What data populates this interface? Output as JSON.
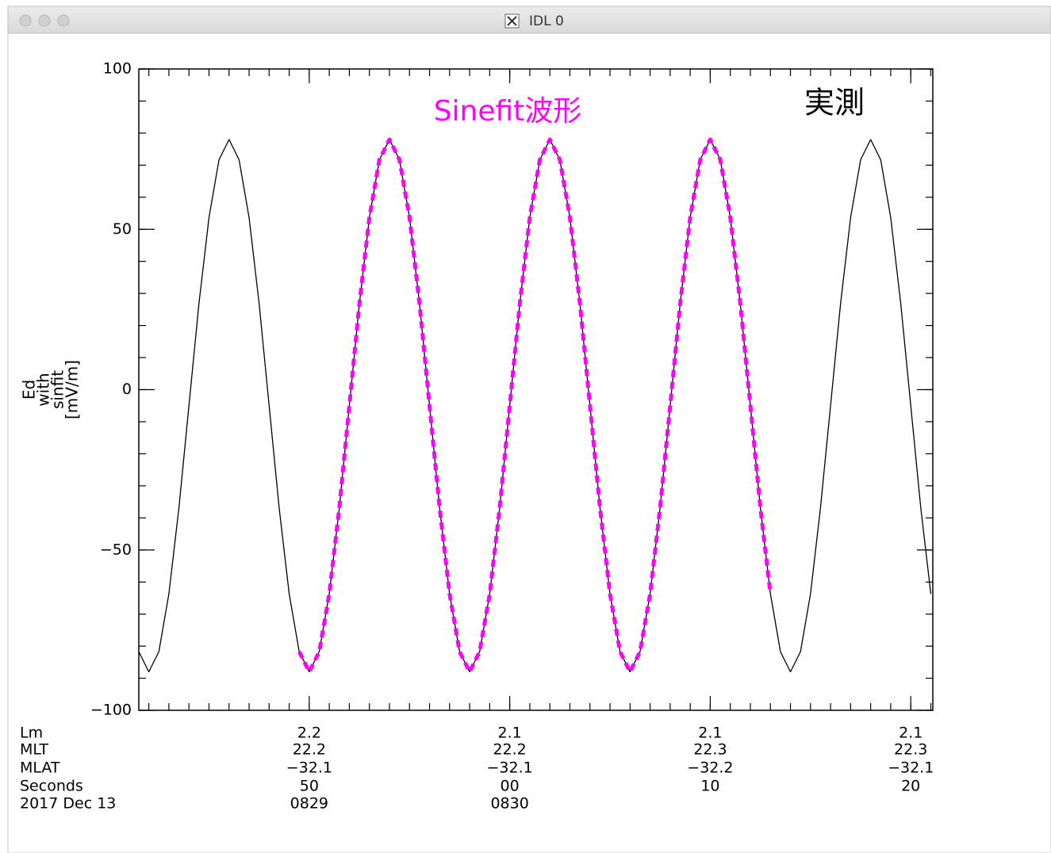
{
  "window": {
    "title": "IDL 0"
  },
  "chart_data": {
    "type": "line",
    "ylabel": [
      "Ed",
      "with",
      "sinfit",
      "[mV/m]"
    ],
    "annotations": [
      {
        "text": "Sinefit波形",
        "color": "#ff00ff"
      },
      {
        "text": "実測",
        "color": "#000000"
      }
    ],
    "xlim": [
      41.5,
      81.1
    ],
    "xticks": [
      {
        "value": 50,
        "label": "50"
      },
      {
        "value": 60,
        "label": "00"
      },
      {
        "value": 70,
        "label": "10"
      },
      {
        "value": 80,
        "label": "20"
      }
    ],
    "xminor_step": 1,
    "xtick_row_labels": [
      "Lm",
      "MLT",
      "MLAT",
      "Seconds",
      "2017 Dec 13"
    ],
    "xtick_lm": [
      "2.2",
      "2.1",
      "2.1",
      "2.1"
    ],
    "xtick_mlt": [
      "22.2",
      "22.2",
      "22.3",
      "22.3"
    ],
    "xtick_mlat": [
      "−32.1",
      "−32.1",
      "−32.2",
      "−32.1"
    ],
    "xtick_hhmm": [
      "0829",
      "0830",
      null,
      null
    ],
    "ylim": [
      -100,
      100
    ],
    "yticks": [
      {
        "value": -100,
        "label": "−100"
      },
      {
        "value": -50,
        "label": "−50"
      },
      0,
      50,
      100
    ],
    "yminor_step": 10,
    "series": [
      {
        "color": "#000000",
        "dashed": false,
        "x": [
          41.5,
          42,
          42.5,
          43,
          43.5,
          44,
          44.5,
          45,
          45.5,
          46,
          46.5,
          47,
          47.5,
          48,
          48.5,
          49,
          49.5,
          50,
          50.5,
          51,
          51.5,
          52,
          52.5,
          53,
          53.5,
          54,
          54.5,
          55,
          55.5,
          56,
          56.5,
          57,
          57.5,
          58,
          58.5,
          59,
          59.5,
          60,
          60.5,
          61,
          61.5,
          62,
          62.5,
          63,
          63.5,
          64,
          64.5,
          65,
          65.5,
          66,
          66.5,
          67,
          67.5,
          68,
          68.5,
          69,
          69.5,
          70,
          70.5,
          71,
          71.5,
          72,
          72.5,
          73,
          73.5,
          74,
          74.5,
          75,
          75.5,
          76,
          76.5,
          77,
          77.5,
          78,
          78.5,
          79,
          79.5,
          80,
          80.5,
          81
        ],
        "values": [
          -81.7,
          -88,
          -81.7,
          -63.7,
          -36.8,
          -5,
          26.8,
          53.7,
          71.7,
          78,
          71.7,
          53.7,
          26.8,
          -5,
          -36.8,
          -63.7,
          -81.7,
          -88,
          -81.7,
          -63.7,
          -36.8,
          -5,
          26.8,
          53.7,
          71.7,
          78,
          71.7,
          53.7,
          26.8,
          -5,
          -36.8,
          -63.7,
          -81.7,
          -88,
          -81.7,
          -63.7,
          -36.8,
          -5,
          26.8,
          53.7,
          71.7,
          78,
          71.7,
          53.7,
          26.8,
          -5,
          -36.8,
          -63.7,
          -81.7,
          -88,
          -81.7,
          -63.7,
          -36.8,
          -5,
          26.8,
          53.7,
          71.7,
          78,
          71.7,
          53.7,
          26.8,
          -5,
          -36.8,
          -63.7,
          -81.7,
          -88,
          -81.7,
          -63.7,
          -36.8,
          -5,
          26.8,
          53.7,
          71.7,
          78,
          71.7,
          53.7,
          26.8,
          -5,
          -36.8,
          -63.7
        ]
      },
      {
        "color": "#ff00ff",
        "dashed": true,
        "x": [
          49.5,
          50,
          50.5,
          51,
          51.5,
          52,
          52.5,
          53,
          53.5,
          54,
          54.5,
          55,
          55.5,
          56,
          56.5,
          57,
          57.5,
          58,
          58.5,
          59,
          59.5,
          60,
          60.5,
          61,
          61.5,
          62,
          62.5,
          63,
          63.5,
          64,
          64.5,
          65,
          65.5,
          66,
          66.5,
          67,
          67.5,
          68,
          68.5,
          69,
          69.5,
          70,
          70.5,
          71,
          71.5,
          72,
          72.5,
          73
        ],
        "values": [
          -81.7,
          -88,
          -81.7,
          -63.7,
          -36.8,
          -5,
          26.8,
          53.7,
          71.7,
          78,
          71.7,
          53.7,
          26.8,
          -5,
          -36.8,
          -63.7,
          -81.7,
          -88,
          -81.7,
          -63.7,
          -36.8,
          -5,
          26.8,
          53.7,
          71.7,
          78,
          71.7,
          53.7,
          26.8,
          -5,
          -36.8,
          -63.7,
          -81.7,
          -88,
          -81.7,
          -63.7,
          -36.8,
          -5,
          26.8,
          53.7,
          71.7,
          78,
          71.7,
          53.7,
          26.8,
          -5,
          -36.8,
          -63.7
        ]
      }
    ]
  }
}
